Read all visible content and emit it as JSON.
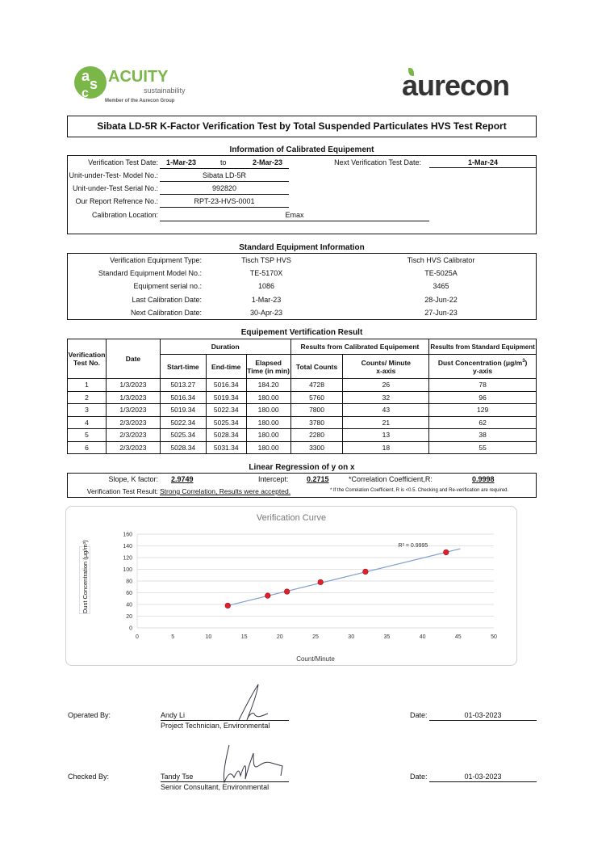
{
  "logos": {
    "acuity": {
      "word": "ACUITY",
      "sub": "sustainability",
      "member": "Member of the Aurecon Group",
      "color": "#7ab648"
    },
    "aurecon": {
      "word": "aurecon",
      "color": "#333333",
      "leaf_color": "#7ab648"
    }
  },
  "title": "Sibata  LD-5R  K-Factor Verification Test by Total Suspended Particulates HVS Test Report",
  "calibrated_info": {
    "heading": "Information of Calibrated Equipement",
    "test_date_label": "Verification Test Date:",
    "test_date_from": "1-Mar-23",
    "to": "to",
    "test_date_to": "2-Mar-23",
    "next_date_label": "Next Verification Test Date:",
    "next_date": "1-Mar-24",
    "model_label": "Unit-under-Test- Model No.:",
    "model": "Sibata LD-5R",
    "serial_label": "Unit-under-Test Serial No.:",
    "serial": "992820",
    "ref_label": "Our Report Refrence No.:",
    "ref": "RPT-23-HVS-0001",
    "location_label": "Calibration Location:",
    "location": "Emax"
  },
  "standard_info": {
    "heading": "Standard Equipment Information",
    "rows": [
      {
        "label": "Verification Equipment Type:",
        "a": "Tisch TSP HVS",
        "b": "Tisch HVS Calibrator"
      },
      {
        "label": "Standard Equipment Model No.:",
        "a": "TE-5170X",
        "b": "TE-5025A"
      },
      {
        "label": "Equipment serial no.:",
        "a": "1086",
        "b": "3465"
      },
      {
        "label": "Last Calibration Date:",
        "a": "1-Mar-23",
        "b": "28-Jun-22"
      },
      {
        "label": "Next Calibration Date:",
        "a": "30-Apr-23",
        "b": "27-Jun-23"
      }
    ]
  },
  "verification": {
    "heading": "Equipement Vertification Result",
    "h_test_no": "Verification Test No.",
    "h_date": "Date",
    "h_duration": "Duration",
    "h_calibrated": "Results from Calibrated Equipement",
    "h_standard": "Results from Standard Equipment",
    "h_start": "Start-time",
    "h_end": "End-time",
    "h_elapsed": "Elapsed Time (in min)",
    "h_total": "Total Counts",
    "h_cpm": "Counts/ Minute",
    "h_cpm_axis": "x-axis",
    "h_dust": "Dust Concentration (μg/m",
    "h_dust_sup": "3",
    "h_dust_close": ")",
    "h_dust_axis": "y-axis",
    "rows": [
      [
        "1",
        "1/3/2023",
        "5013.27",
        "5016.34",
        "184.20",
        "4728",
        "26",
        "78"
      ],
      [
        "2",
        "1/3/2023",
        "5016.34",
        "5019.34",
        "180.00",
        "5760",
        "32",
        "96"
      ],
      [
        "3",
        "1/3/2023",
        "5019.34",
        "5022.34",
        "180.00",
        "7800",
        "43",
        "129"
      ],
      [
        "4",
        "2/3/2023",
        "5022.34",
        "5025.34",
        "180.00",
        "3780",
        "21",
        "62"
      ],
      [
        "5",
        "2/3/2023",
        "5025.34",
        "5028.34",
        "180.00",
        "2280",
        "13",
        "38"
      ],
      [
        "6",
        "2/3/2023",
        "5028.34",
        "5031.34",
        "180.00",
        "3300",
        "18",
        "55"
      ]
    ]
  },
  "regression": {
    "heading": "Linear Regression of y on x",
    "slope_label": "Slope, K factor:",
    "slope": "2.9749",
    "intercept_label": "Intercept:",
    "intercept": "0.2715",
    "r_label": "*Correlation Coefficient,R:",
    "r": "0.9998",
    "result_label": "Verification Test Result:",
    "result": "Strong Correlation, Results were accepted.",
    "note": "* If the Correlation Coefficient, R is <0.5. Checking and Re-verification are required."
  },
  "chart_data": {
    "type": "scatter",
    "title": "Verification Curve",
    "xlabel": "Count/Minute",
    "ylabel": "Dust Concentration (μg/m³)",
    "xlim": [
      0,
      50
    ],
    "ylim": [
      0,
      160
    ],
    "xticks": [
      "0",
      "5",
      "10",
      "15",
      "20",
      "25",
      "30",
      "35",
      "40",
      "45",
      "50"
    ],
    "yticks": [
      "0",
      "20",
      "40",
      "60",
      "80",
      "100",
      "120",
      "140",
      "160"
    ],
    "grid": "horizontal",
    "points": [
      {
        "x": 25.7,
        "y": 78
      },
      {
        "x": 32,
        "y": 96
      },
      {
        "x": 43.3,
        "y": 129
      },
      {
        "x": 21,
        "y": 62
      },
      {
        "x": 12.7,
        "y": 38
      },
      {
        "x": 18.3,
        "y": 55
      }
    ],
    "trendline": {
      "slope": 2.9749,
      "intercept": 0.2715,
      "x_range": [
        12.7,
        45.3
      ],
      "label": "R² = 0.9995"
    },
    "point_color": "#e0202a",
    "line_color": "#7f9fcf"
  },
  "signoff": {
    "operated_label": "Operated By:",
    "operated_name": "Andy Li",
    "operated_title": "Project Technician, Environmental",
    "operated_date_label": "Date:",
    "operated_date": "01-03-2023",
    "checked_label": "Checked By:",
    "checked_name": "Tandy Tse",
    "checked_title": "Senior Consultant, Environmental",
    "checked_date_label": "Date:",
    "checked_date": "01-03-2023"
  }
}
